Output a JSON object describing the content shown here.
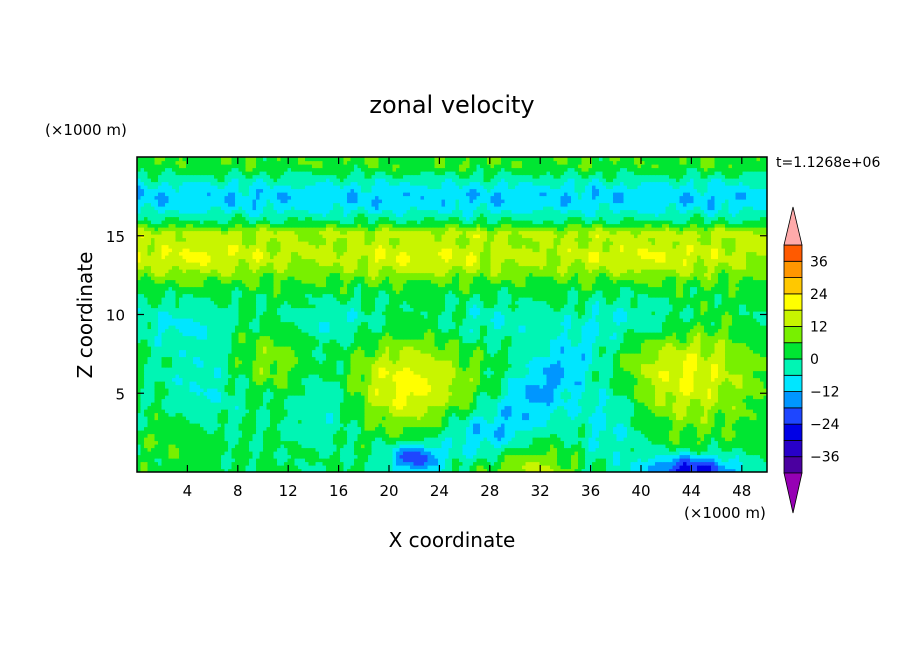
{
  "chart_data": {
    "type": "heatmap",
    "title": "zonal velocity",
    "xlabel": "X coordinate",
    "ylabel": "Z coordinate",
    "x_unit": "(×1000 m)",
    "y_unit": "(×1000 m)",
    "time_label": "t=1.1268e+06",
    "xlim": [
      0,
      50
    ],
    "ylim": [
      0,
      20
    ],
    "x_ticks": [
      4,
      8,
      12,
      16,
      20,
      24,
      28,
      32,
      36,
      40,
      44,
      48
    ],
    "y_ticks": [
      5,
      10,
      15
    ],
    "grid": false,
    "colorbar": {
      "placement": "right",
      "levels": [
        -42,
        -36,
        -30,
        -24,
        -18,
        -12,
        -6,
        0,
        6,
        12,
        18,
        24,
        30,
        36,
        42
      ],
      "labels": [
        {
          "value": 36,
          "text": "36"
        },
        {
          "value": 24,
          "text": "24"
        },
        {
          "value": 12,
          "text": "12"
        },
        {
          "value": 0,
          "text": "0"
        },
        {
          "value": -12,
          "text": "−12"
        },
        {
          "value": -24,
          "text": "−24"
        },
        {
          "value": -36,
          "text": "−36"
        }
      ],
      "colors": [
        "#4b00a0",
        "#2800c8",
        "#0000e6",
        "#1e46ff",
        "#0096ff",
        "#00e6ff",
        "#00f5b4",
        "#00e632",
        "#78f000",
        "#c8f500",
        "#ffff00",
        "#ffc800",
        "#ff9600",
        "#ff5a00",
        "#ff1e00"
      ],
      "under_color": "#9600b4",
      "over_color": "#ffaaaa"
    },
    "field_features": [
      {
        "name": "positive lobe",
        "x": 10,
        "z": 7,
        "value": 9
      },
      {
        "name": "positive lobe",
        "x": 21,
        "z": 5.5,
        "value": 17
      },
      {
        "name": "positive lobe",
        "x": 43,
        "z": 6,
        "value": 15
      },
      {
        "name": "positive lobe",
        "x": 31,
        "z": 0.5,
        "value": 10
      },
      {
        "name": "negative band",
        "x": 31,
        "z": 7,
        "value": -13
      },
      {
        "name": "negative core",
        "x": 44,
        "z": 0.3,
        "value": -24
      },
      {
        "name": "negative core",
        "x": 22,
        "z": 1.0,
        "value": -20
      },
      {
        "name": "upper jet",
        "z": 13.8,
        "value": 14
      },
      {
        "name": "upper negative layer",
        "z": 17.4,
        "value": -10
      }
    ]
  }
}
